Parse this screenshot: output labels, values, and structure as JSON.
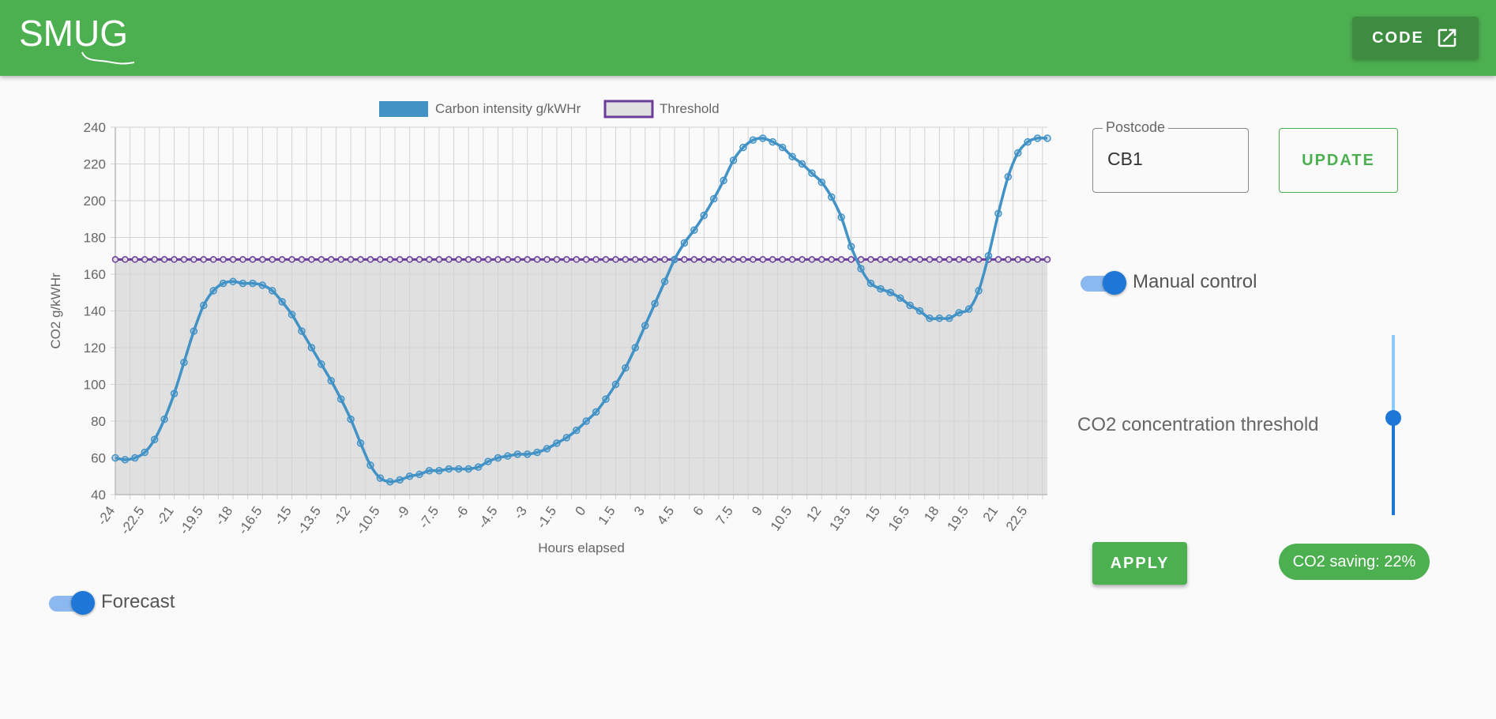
{
  "appbar": {
    "logo_text": "SMUG",
    "code_button_label": "CODE"
  },
  "controls": {
    "postcode_label": "Postcode",
    "postcode_value": "CB1",
    "update_label": "UPDATE",
    "manual_control_label": "Manual control",
    "manual_control_on": true,
    "threshold_label": "CO2 concentration threshold",
    "threshold_slider_fraction": 0.55,
    "apply_label": "APPLY",
    "saving_text": "CO2 saving: 22%",
    "forecast_label": "Forecast",
    "forecast_on": true
  },
  "colors": {
    "appbar": "#4caf50",
    "series": "#4292c6",
    "threshold": "#6a3d9a",
    "switch": "#1e76d6"
  },
  "chart_data": {
    "type": "line",
    "xlabel": "Hours elapsed",
    "ylabel": "CO2 g/kWHr",
    "ylim": [
      40,
      240
    ],
    "yticks": [
      40,
      60,
      80,
      100,
      120,
      140,
      160,
      180,
      200,
      220,
      240
    ],
    "xtick_labels": [
      "-24",
      "-22.5",
      "-21",
      "-19.5",
      "-18",
      "-16.5",
      "-15",
      "-13.5",
      "-12",
      "-10.5",
      "-9",
      "-7.5",
      "-6",
      "-4.5",
      "-3",
      "-1.5",
      "0",
      "1.5",
      "3",
      "4.5",
      "6",
      "7.5",
      "9",
      "10.5",
      "12",
      "13.5",
      "15",
      "16.5",
      "18",
      "19.5",
      "21",
      "22.5"
    ],
    "x_start": -24,
    "x_step": 0.5,
    "legend_position": "top",
    "grid": true,
    "series": [
      {
        "name": "Carbon intensity g/kWHr",
        "values": [
          60,
          59,
          60,
          63,
          70,
          81,
          95,
          112,
          129,
          143,
          151,
          155,
          156,
          155,
          155,
          154,
          151,
          145,
          138,
          129,
          120,
          111,
          102,
          92,
          81,
          68,
          56,
          49,
          47,
          48,
          50,
          51,
          53,
          53,
          54,
          54,
          54,
          55,
          58,
          60,
          61,
          62,
          62,
          63,
          65,
          68,
          71,
          75,
          80,
          85,
          92,
          100,
          109,
          120,
          132,
          144,
          156,
          168,
          177,
          184,
          192,
          201,
          211,
          222,
          229,
          233,
          234,
          232,
          229,
          224,
          220,
          215,
          210,
          202,
          191,
          175,
          163,
          155,
          152,
          150,
          147,
          143,
          140,
          136,
          136,
          136,
          139,
          141,
          151,
          170,
          193,
          213,
          226,
          232,
          234,
          234
        ],
        "fill": false
      },
      {
        "name": "Threshold",
        "values": [
          168
        ],
        "constant": true,
        "fill": true
      }
    ]
  }
}
